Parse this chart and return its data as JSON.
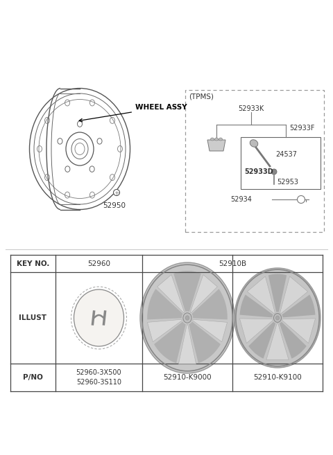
{
  "bg_color": "#ffffff",
  "wheel_label": "WHEEL ASSY",
  "part_52950": "52950",
  "tpms_label": "(TPMS)",
  "line_color": "#555555",
  "text_color": "#333333",
  "table_border_color": "#444444",
  "dashed_border_color": "#999999"
}
